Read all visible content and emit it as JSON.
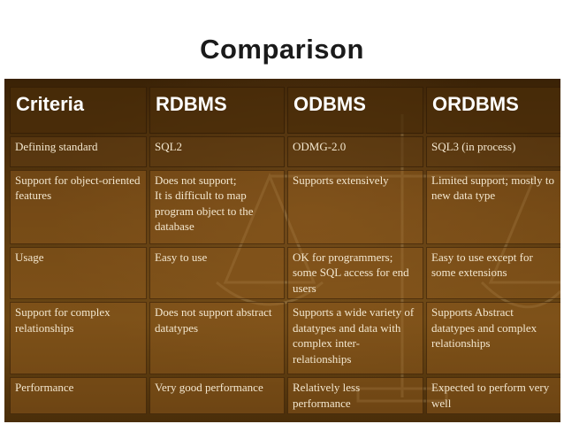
{
  "slide": {
    "title": "Comparison"
  },
  "table": {
    "headers": [
      "Criteria",
      "RDBMS",
      "ODBMS",
      "ORDBMS"
    ],
    "rows": [
      {
        "criteria": "Defining standard",
        "rdbms": "SQL2",
        "odbms": "ODMG-2.0",
        "ordbms": "SQL3 (in process)"
      },
      {
        "criteria": "Support for object-oriented features",
        "rdbms": "Does not support;",
        "rdbms_2": "It is difficult to map program object to the database",
        "odbms": "Supports extensively",
        "ordbms": "Limited support; mostly to new data type"
      },
      {
        "criteria": "Usage",
        "rdbms": "Easy to use",
        "odbms": "OK for programmers; some SQL access for end users",
        "ordbms": "Easy to use except for some extensions"
      },
      {
        "criteria": "Support for complex relationships",
        "rdbms": "Does not support abstract datatypes",
        "odbms": "Supports a wide variety of datatypes and data with complex inter-relationships",
        "ordbms": "Supports Abstract datatypes and complex relationships"
      },
      {
        "criteria": "Performance",
        "rdbms": "Very good performance",
        "odbms": "Relatively less performance",
        "ordbms": "Expected to perform very well"
      }
    ]
  }
}
